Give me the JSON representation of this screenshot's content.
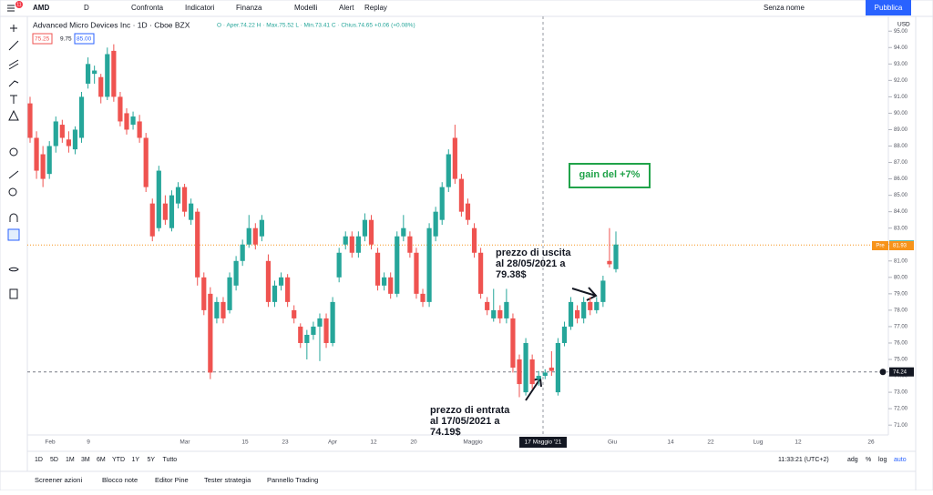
{
  "toolbar": {
    "symbol": "AMD",
    "interval": "D",
    "items": [
      "Confronta",
      "Indicatori",
      "Finanza",
      "Modelli",
      "Alert",
      "Replay"
    ],
    "layout_name": "Senza nome",
    "publish": "Pubblica",
    "badge": "11"
  },
  "chart_data": {
    "type": "candlestick",
    "title": "Advanced Micro Devices Inc · 1D · Cboe BZX",
    "ohlc_legend": "O · Aper.74.22  H · Max.75.52  L · Min.73.41  C · Chius.74.65  +0.06 (+0.08%)",
    "quote_boxes": [
      "75.25",
      "9.75",
      "85.00"
    ],
    "currency": "USD",
    "up_color": "#26a69a",
    "down_color": "#ef5350",
    "ylim": [
      70.4,
      95.9
    ],
    "yticks": [
      {
        "value": 71,
        "label": "71.00"
      },
      {
        "value": 72,
        "label": "72.00"
      },
      {
        "value": 73,
        "label": "73.00"
      },
      {
        "value": 74,
        "label": "74.00"
      },
      {
        "value": 75,
        "label": "75.00"
      },
      {
        "value": 76,
        "label": "76.00"
      },
      {
        "value": 77,
        "label": "77.00"
      },
      {
        "value": 78,
        "label": "78.00"
      },
      {
        "value": 79,
        "label": "79.00"
      },
      {
        "value": 80,
        "label": "80.00"
      },
      {
        "value": 81,
        "label": "81.00"
      },
      {
        "value": 82,
        "label": "82.00"
      },
      {
        "value": 83,
        "label": "83.00"
      },
      {
        "value": 84,
        "label": "84.00"
      },
      {
        "value": 85,
        "label": "85.00"
      },
      {
        "value": 86,
        "label": "86.00"
      },
      {
        "value": 87,
        "label": "87.00"
      },
      {
        "value": 88,
        "label": "88.00"
      },
      {
        "value": 89,
        "label": "89.00"
      },
      {
        "value": 90,
        "label": "90.00"
      },
      {
        "value": 91,
        "label": "91.00"
      },
      {
        "value": 92,
        "label": "92.00"
      },
      {
        "value": 93,
        "label": "93.00"
      },
      {
        "value": 94,
        "label": "94.00"
      },
      {
        "value": 95,
        "label": "95.00"
      }
    ],
    "x_labels": [
      "Feb",
      "9",
      "Mar",
      "15",
      "23",
      "Apr",
      "12",
      "20",
      "Maggio",
      "17 Maggio '21",
      "Giu",
      "14",
      "22",
      "Lug",
      "12",
      "26"
    ],
    "price_labels": [
      {
        "value": 81.97,
        "label": "81.97",
        "color": "#26a69a"
      },
      {
        "value": 81.93,
        "label": "81.93",
        "tag": "Pre",
        "color": "#f7931a"
      },
      {
        "value": 74.24,
        "label": "74.24",
        "color": "#131722"
      }
    ],
    "candles": [
      [
        90.6,
        91.0,
        88.2,
        88.5
      ],
      [
        88.5,
        88.9,
        86.0,
        86.5
      ],
      [
        87.5,
        88.0,
        85.5,
        86.0
      ],
      [
        86.3,
        88.3,
        86.0,
        88.0
      ],
      [
        88.0,
        89.8,
        87.6,
        89.5
      ],
      [
        89.3,
        89.6,
        88.2,
        88.5
      ],
      [
        88.4,
        88.9,
        87.6,
        88.0
      ],
      [
        87.8,
        89.2,
        87.5,
        89.0
      ],
      [
        88.5,
        91.3,
        88.2,
        91.0
      ],
      [
        91.8,
        93.4,
        91.5,
        93.0
      ],
      [
        92.4,
        92.9,
        91.8,
        92.6
      ],
      [
        92.2,
        92.4,
        90.6,
        91.0
      ],
      [
        91.0,
        94.0,
        90.8,
        93.6
      ],
      [
        93.8,
        94.2,
        90.7,
        91.0
      ],
      [
        91.0,
        91.3,
        89.2,
        89.5
      ],
      [
        90.0,
        90.3,
        88.7,
        89.0
      ],
      [
        89.3,
        90.1,
        89.0,
        89.8
      ],
      [
        89.5,
        89.9,
        88.2,
        88.5
      ],
      [
        88.5,
        88.8,
        85.2,
        85.5
      ],
      [
        84.5,
        84.8,
        82.2,
        82.5
      ],
      [
        83.0,
        86.8,
        82.8,
        86.5
      ],
      [
        84.5,
        85.0,
        83.2,
        83.5
      ],
      [
        83.0,
        85.3,
        82.8,
        85.0
      ],
      [
        84.5,
        85.8,
        84.2,
        85.5
      ],
      [
        85.5,
        85.7,
        83.7,
        84.0
      ],
      [
        83.5,
        84.8,
        83.2,
        84.5
      ],
      [
        84.0,
        84.2,
        79.5,
        80.0
      ],
      [
        80.0,
        80.3,
        77.7,
        78.0
      ],
      [
        79.0,
        79.4,
        73.8,
        74.2
      ],
      [
        77.5,
        78.8,
        77.2,
        78.5
      ],
      [
        78.5,
        78.8,
        77.2,
        77.5
      ],
      [
        78.0,
        80.3,
        77.8,
        80.0
      ],
      [
        79.5,
        81.3,
        79.2,
        81.0
      ],
      [
        81.0,
        82.3,
        80.7,
        82.0
      ],
      [
        82.0,
        83.8,
        81.8,
        83.0
      ],
      [
        83.0,
        83.3,
        81.7,
        82.0
      ],
      [
        82.5,
        83.8,
        82.2,
        83.5
      ],
      [
        81.0,
        81.4,
        78.2,
        78.5
      ],
      [
        78.5,
        79.8,
        78.2,
        79.5
      ],
      [
        79.5,
        80.3,
        79.2,
        80.0
      ],
      [
        80.0,
        80.2,
        78.2,
        78.5
      ],
      [
        78.0,
        78.3,
        77.2,
        77.5
      ],
      [
        77.0,
        77.2,
        75.7,
        76.0
      ],
      [
        76.0,
        76.8,
        75.0,
        76.5
      ],
      [
        76.5,
        77.3,
        76.2,
        77.0
      ],
      [
        77.0,
        77.8,
        74.9,
        77.5
      ],
      [
        77.5,
        77.8,
        75.7,
        76.0
      ],
      [
        76.0,
        78.8,
        75.8,
        78.5
      ],
      [
        80.0,
        81.8,
        79.7,
        81.5
      ],
      [
        82.0,
        82.8,
        81.7,
        82.5
      ],
      [
        82.5,
        82.8,
        81.2,
        81.5
      ],
      [
        81.5,
        82.8,
        81.2,
        82.5
      ],
      [
        82.5,
        83.9,
        82.2,
        83.5
      ],
      [
        83.5,
        83.8,
        81.7,
        82.0
      ],
      [
        81.5,
        81.8,
        79.2,
        79.5
      ],
      [
        79.5,
        80.3,
        79.2,
        80.0
      ],
      [
        80.0,
        80.3,
        78.7,
        79.0
      ],
      [
        79.0,
        82.8,
        78.8,
        82.5
      ],
      [
        82.5,
        83.8,
        82.2,
        83.0
      ],
      [
        82.5,
        82.8,
        81.2,
        81.5
      ],
      [
        81.5,
        81.8,
        78.7,
        79.0
      ],
      [
        79.0,
        79.3,
        78.2,
        78.5
      ],
      [
        78.5,
        83.3,
        78.2,
        83.0
      ],
      [
        82.5,
        84.3,
        82.2,
        84.0
      ],
      [
        83.5,
        85.8,
        83.2,
        85.5
      ],
      [
        85.5,
        87.8,
        85.2,
        87.5
      ],
      [
        88.5,
        89.3,
        85.7,
        86.0
      ],
      [
        86.0,
        86.3,
        83.7,
        84.0
      ],
      [
        84.5,
        84.8,
        83.2,
        83.5
      ],
      [
        83.0,
        83.3,
        81.2,
        81.5
      ],
      [
        81.5,
        81.8,
        78.7,
        79.0
      ],
      [
        78.5,
        78.8,
        77.7,
        78.0
      ],
      [
        77.5,
        79.3,
        77.3,
        78.0
      ],
      [
        78.0,
        78.3,
        77.2,
        77.5
      ],
      [
        77.5,
        79.3,
        77.2,
        78.5
      ],
      [
        77.5,
        77.8,
        74.2,
        74.5
      ],
      [
        75.0,
        75.3,
        72.7,
        73.5
      ],
      [
        73.0,
        76.3,
        72.8,
        76.0
      ],
      [
        75.0,
        75.3,
        73.2,
        73.5
      ],
      [
        73.8,
        74.3,
        73.4,
        74.0
      ],
      [
        74.0,
        74.4,
        73.8,
        74.2
      ],
      [
        74.5,
        75.5,
        74.0,
        74.3
      ],
      [
        73.0,
        76.3,
        72.8,
        76.0
      ],
      [
        76.0,
        77.3,
        75.8,
        77.0
      ],
      [
        77.0,
        78.8,
        76.8,
        78.5
      ],
      [
        78.0,
        78.3,
        77.2,
        77.5
      ],
      [
        77.5,
        78.8,
        77.2,
        78.5
      ],
      [
        78.5,
        78.8,
        77.7,
        78.0
      ],
      [
        78.0,
        78.8,
        77.8,
        78.5
      ],
      [
        78.5,
        80.1,
        78.2,
        79.8
      ],
      [
        81.0,
        83.0,
        80.6,
        80.8
      ],
      [
        80.5,
        82.8,
        80.3,
        82.0
      ]
    ],
    "annotations": [
      {
        "lines": [
          "gain del +7%"
        ]
      },
      {
        "lines": [
          "prezzo di uscita",
          "al 28/05/2021 a",
          "79.38$"
        ]
      },
      {
        "lines": [
          "prezzo di entrata",
          "al 17/05/2021 a",
          "74.19$"
        ]
      }
    ]
  },
  "range_bar": {
    "ranges": [
      "1D",
      "5D",
      "1M",
      "3M",
      "6M",
      "YTD",
      "1Y",
      "5Y",
      "Tutto"
    ],
    "clock": "11:33:21 (UTC+2)",
    "options": [
      "adg",
      "%",
      "log",
      "auto"
    ]
  },
  "bottom_tabs": [
    "Screener azioni",
    "Blocco note",
    "Editor Pine",
    "Tester strategia",
    "Pannello Trading"
  ]
}
